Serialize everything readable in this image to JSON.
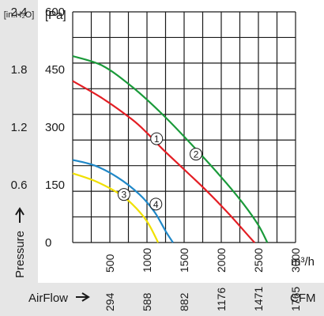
{
  "chart_data": {
    "type": "line",
    "y_units": {
      "inh2o": "[in.H₂O]",
      "pa": "[Pa]"
    },
    "y_ticks_pa": [
      "0",
      "150",
      "300",
      "450",
      "600"
    ],
    "y_ticks_inh2o": [
      "0.6",
      "1.2",
      "1.8",
      "2.4"
    ],
    "x_ticks_m3h": [
      "500",
      "1000",
      "1500",
      "2000",
      "2500",
      "3000"
    ],
    "x_unit_m3h": "m³/h",
    "x_ticks_cfm": [
      "294",
      "588",
      "882",
      "1176",
      "1471",
      "1765"
    ],
    "x_unit_cfm": "CFM",
    "ylabel": "Pressure",
    "xlabel": "AirFlow",
    "ylim": [
      0,
      600
    ],
    "xlim": [
      0,
      3000
    ],
    "grid": true,
    "series": [
      {
        "label": "1",
        "color": "#e31e24",
        "x": [
          0,
          400,
          800,
          1000,
          1200,
          1500,
          1800,
          2100,
          2400,
          2450
        ],
        "y": [
          420,
          375,
          320,
          285,
          245,
          190,
          135,
          75,
          10,
          0
        ]
      },
      {
        "label": "2",
        "color": "#1a9a3a",
        "x": [
          0,
          400,
          800,
          1200,
          1600,
          2000,
          2300,
          2500,
          2620
        ],
        "y": [
          485,
          460,
          405,
          335,
          255,
          170,
          100,
          45,
          0
        ]
      },
      {
        "label": "3",
        "color": "#f0e000",
        "x": [
          0,
          300,
          600,
          800,
          1000,
          1150
        ],
        "y": [
          180,
          160,
          130,
          100,
          55,
          0
        ]
      },
      {
        "label": "4",
        "color": "#2088c8",
        "x": [
          0,
          300,
          600,
          900,
          1100,
          1250,
          1350
        ],
        "y": [
          215,
          200,
          170,
          125,
          80,
          30,
          0
        ]
      }
    ],
    "curve_labels": [
      {
        "label": "1",
        "x": 1130,
        "y": 270
      },
      {
        "label": "2",
        "x": 1660,
        "y": 230
      },
      {
        "label": "3",
        "x": 690,
        "y": 125
      },
      {
        "label": "4",
        "x": 1120,
        "y": 100
      }
    ]
  }
}
